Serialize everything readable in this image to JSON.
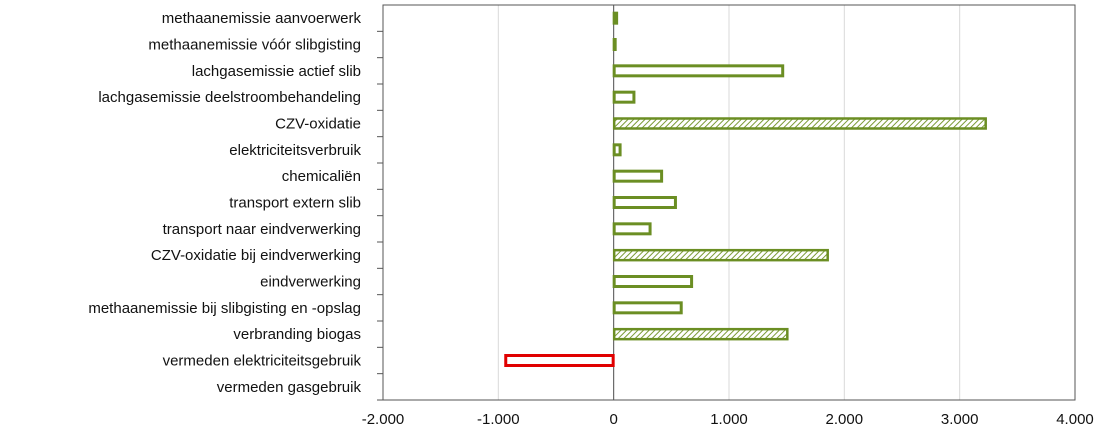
{
  "chart_data": {
    "type": "bar",
    "orientation": "horizontal",
    "categories": [
      "methaanemissie aanvoerwerk",
      "methaanemissie vóór slibgisting",
      "lachgasemissie actief slib",
      "lachgasemissie deelstroombehandeling",
      "CZV-oxidatie",
      "elektriciteitsverbruik",
      "chemicaliën",
      "transport extern slib",
      "transport naar eindverwerking",
      "CZV-oxidatie bij eindverwerking",
      "eindverwerking",
      "methaanemissie bij slibgisting en -opslag",
      "verbranding biogas",
      "vermeden elektriciteitsgebruik",
      "vermeden gasgebruik"
    ],
    "values": [
      30,
      10,
      1470,
      180,
      3230,
      60,
      420,
      540,
      320,
      1860,
      680,
      590,
      1510,
      -940,
      0
    ],
    "styles": [
      "outline",
      "outline",
      "outline",
      "outline",
      "hatched",
      "outline",
      "outline",
      "outline",
      "outline",
      "hatched",
      "outline",
      "outline",
      "hatched",
      "negative",
      "outline"
    ],
    "xlim": [
      -2000,
      4000
    ],
    "xticks": [
      -2000,
      -1000,
      0,
      1000,
      2000,
      3000,
      4000
    ],
    "xtick_labels": [
      "-2.000",
      "-1.000",
      "0",
      "1.000",
      "2.000",
      "3.000",
      "4.000"
    ],
    "grid": true,
    "colors": {
      "positive": "#6b8e23",
      "hatch_fill": "#9bbb4e",
      "negative": "#e00000",
      "grid": "#d9d9d9",
      "axis": "#555555"
    }
  }
}
